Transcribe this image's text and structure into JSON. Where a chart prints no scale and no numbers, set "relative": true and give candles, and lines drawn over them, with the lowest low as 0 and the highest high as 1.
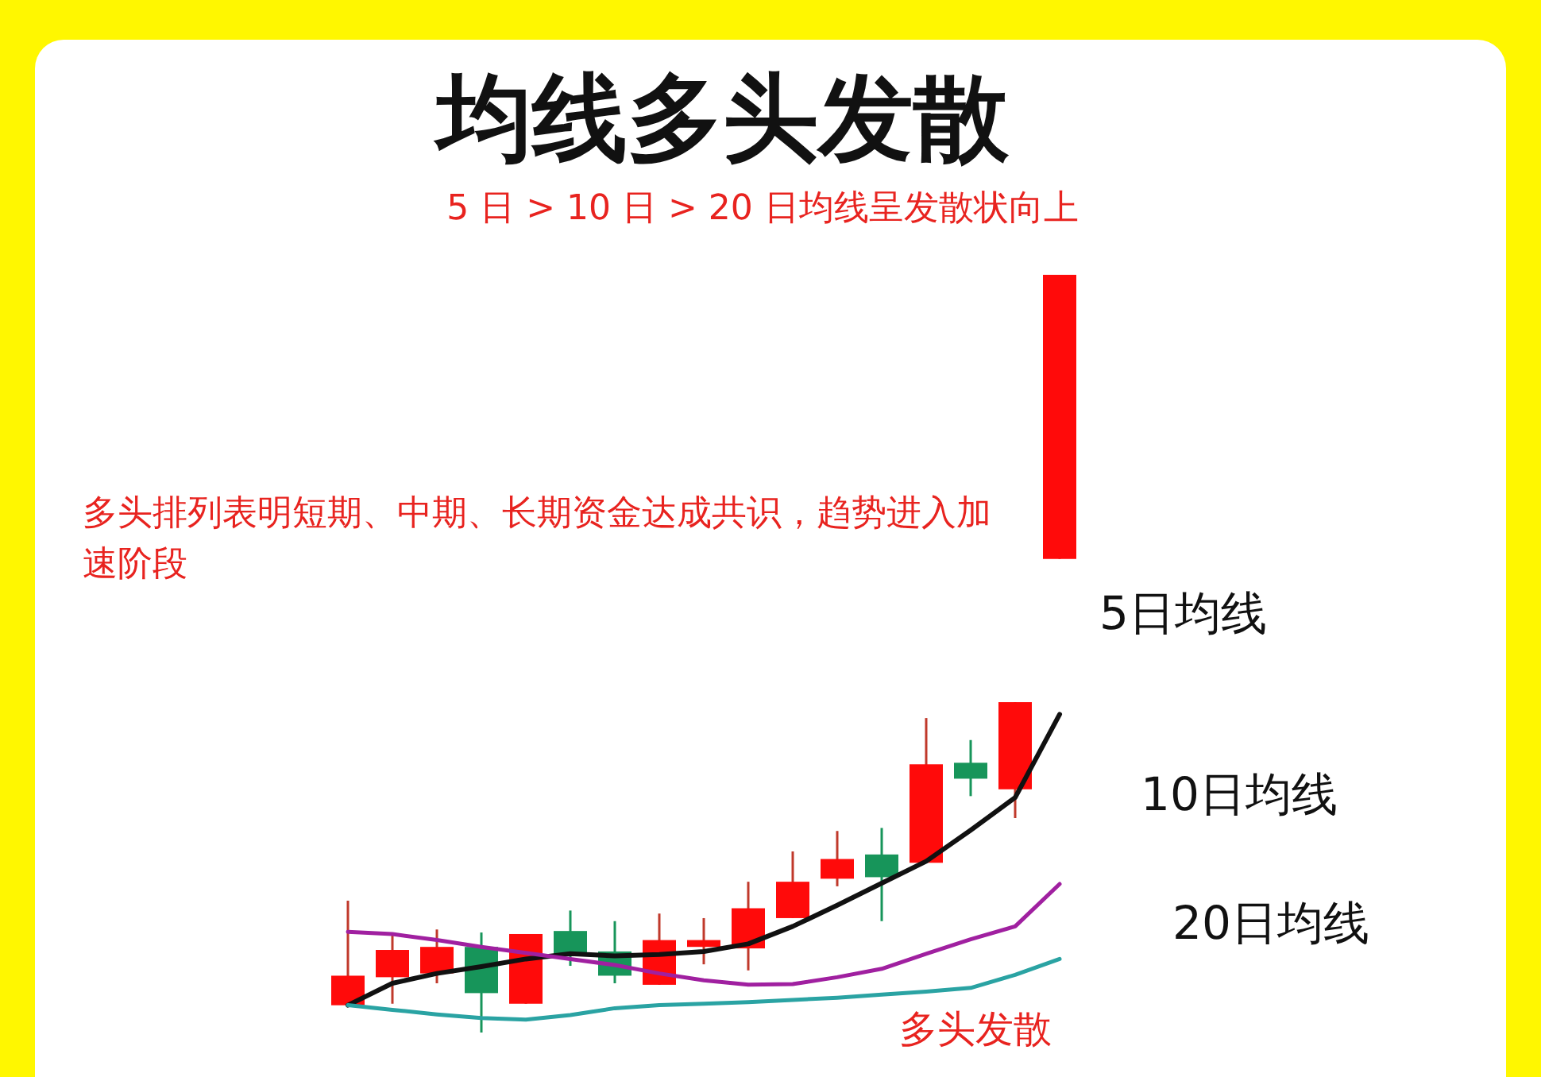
{
  "chart_data": {
    "type": "candlestick",
    "title": "均线多头发散",
    "subtitle": "5 日 > 10 日 > 20 日均线呈发散状向上",
    "relative": true,
    "annotations": [
      "多头排列表明短期、中期、长期资金达成共识，趋势进入加速阶段",
      "多头发散"
    ],
    "categories": [
      null,
      null,
      null,
      null,
      null,
      null,
      null,
      null,
      null,
      null,
      null,
      null,
      null,
      null,
      null,
      null,
      null
    ],
    "ohlc": [
      [
        0.036,
        0.174,
        0.036,
        0.075
      ],
      [
        0.073,
        0.13,
        0.038,
        0.109
      ],
      [
        0.078,
        0.136,
        0.065,
        0.113
      ],
      [
        0.113,
        0.132,
        0,
        0.052
      ],
      [
        0.038,
        0.13,
        0.038,
        0.13
      ],
      [
        0.134,
        0.161,
        0.088,
        0.101
      ],
      [
        0.107,
        0.147,
        0.065,
        0.075
      ],
      [
        0.063,
        0.157,
        0.063,
        0.122
      ],
      [
        0.113,
        0.151,
        0.09,
        0.122
      ],
      [
        0.111,
        0.199,
        0.082,
        0.164
      ],
      [
        0.151,
        0.239,
        0.151,
        0.199
      ],
      [
        0.203,
        0.266,
        0.193,
        0.229
      ],
      [
        0.235,
        0.27,
        0.147,
        0.205
      ],
      [
        0.224,
        0.415,
        0.224,
        0.354
      ],
      [
        0.356,
        0.386,
        0.312,
        0.335
      ],
      [
        0.321,
        0.436,
        0.283,
        0.436
      ],
      [
        0.625,
        1,
        0.625,
        1
      ]
    ],
    "series": [
      {
        "name": "5日均线",
        "type": "line",
        "color": "#111111",
        "values": [
          0.036,
          0.065,
          0.078,
          0.087,
          0.097,
          0.104,
          0.101,
          0.103,
          0.107,
          0.117,
          0.14,
          0.168,
          0.197,
          0.226,
          0.267,
          0.31,
          0.42
        ]
      },
      {
        "name": "10日均线",
        "type": "line",
        "color": "#a020a0",
        "values": [
          0.133,
          0.13,
          0.122,
          0.113,
          0.105,
          0.097,
          0.089,
          0.078,
          0.069,
          0.063,
          0.064,
          0.073,
          0.084,
          0.104,
          0.123,
          0.14,
          0.196
        ]
      },
      {
        "name": "20日均线",
        "type": "line",
        "color": "#2aa3a3",
        "values": [
          0.036,
          0.03,
          0.024,
          0.019,
          0.017,
          0.023,
          0.032,
          0.036,
          0.038,
          0.04,
          0.043,
          0.046,
          0.05,
          0.054,
          0.059,
          0.076,
          0.097
        ]
      }
    ],
    "marker": "none",
    "line_style": "solid"
  }
}
